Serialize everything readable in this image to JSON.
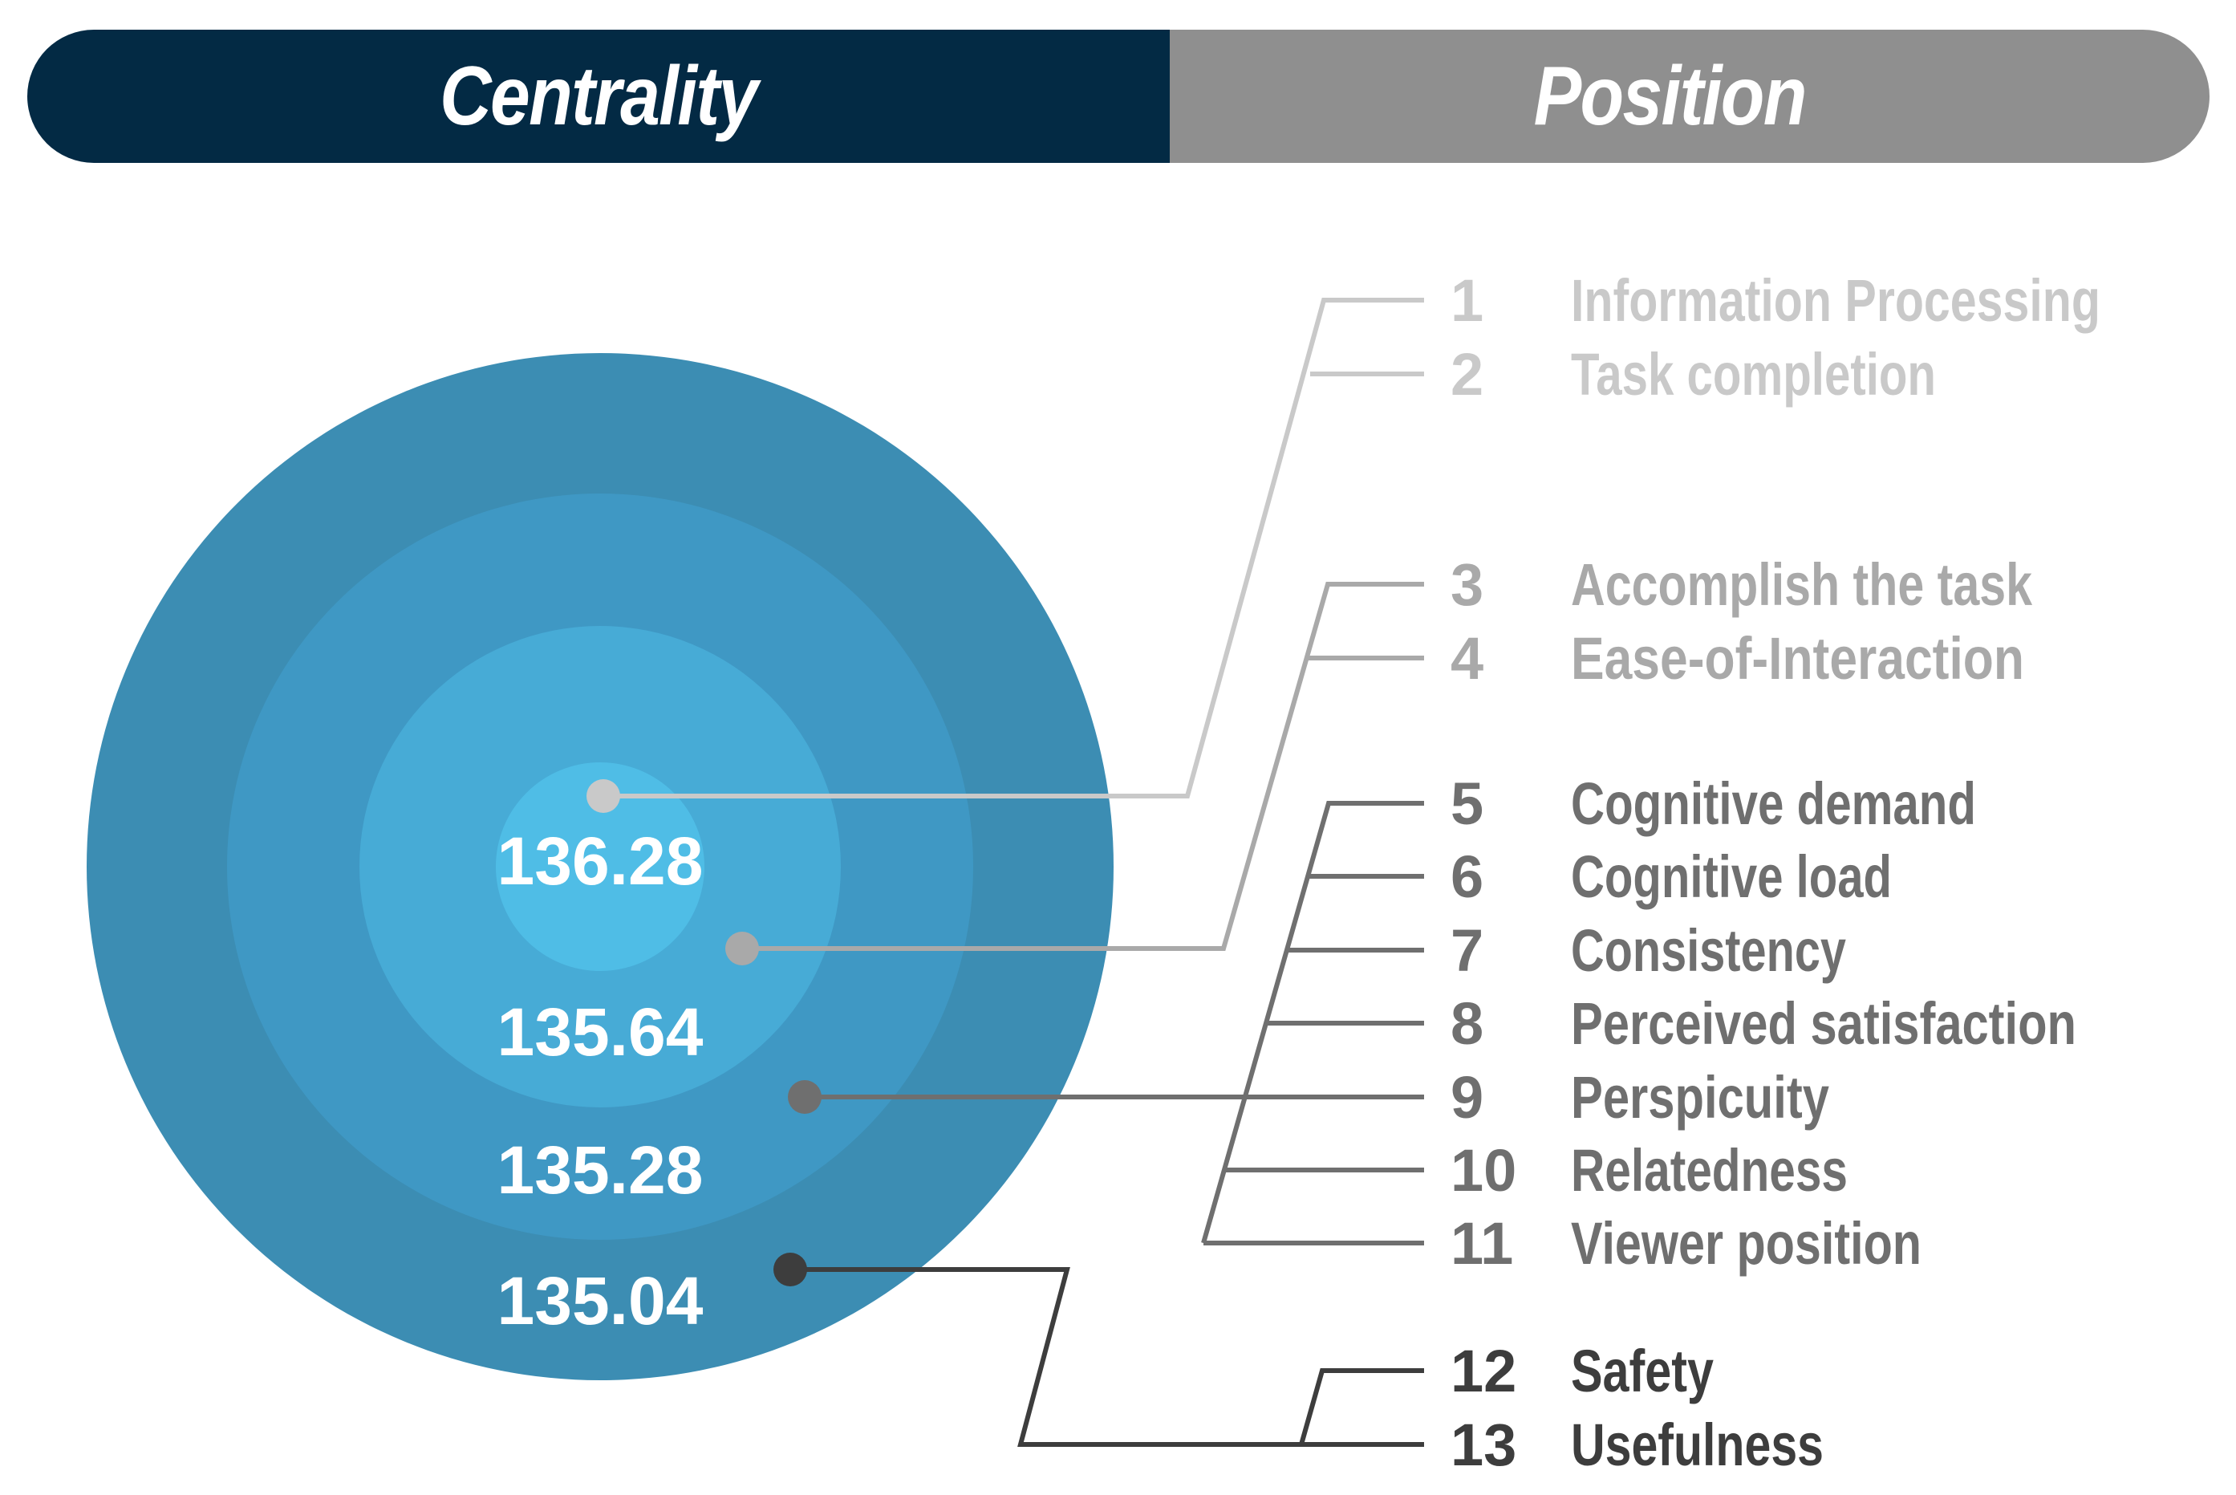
{
  "header": {
    "left_title": "Centrality",
    "right_title": "Position"
  },
  "colors": {
    "header_left": "#032a44",
    "header_right": "#8f8f8f",
    "ring_outer": "#3c8db3",
    "ring_2": "#3f98c4",
    "ring_3": "#47abd6",
    "ring_inner": "#4fbde6",
    "group_1": "#c9c9c9",
    "group_2": "#a9a9a9",
    "group_3": "#6f6f6f",
    "group_4": "#3d3d3d"
  },
  "rings": [
    {
      "value": "136.28"
    },
    {
      "value": "135.64"
    },
    {
      "value": "135.28"
    },
    {
      "value": "135.04"
    }
  ],
  "groups": [
    {
      "items": [
        {
          "num": "1",
          "label": "Information Processing"
        },
        {
          "num": "2",
          "label": "Task completion"
        }
      ]
    },
    {
      "items": [
        {
          "num": "3",
          "label": "Accomplish the task"
        },
        {
          "num": "4",
          "label": "Ease-of-Interaction"
        }
      ]
    },
    {
      "items": [
        {
          "num": "5",
          "label": "Cognitive demand"
        },
        {
          "num": "6",
          "label": "Cognitive load"
        },
        {
          "num": "7",
          "label": "Consistency"
        },
        {
          "num": "8",
          "label": "Perceived satisfaction"
        },
        {
          "num": "9",
          "label": "Perspicuity"
        },
        {
          "num": "10",
          "label": "Relatedness"
        },
        {
          "num": "11",
          "label": "Viewer position"
        }
      ]
    },
    {
      "items": [
        {
          "num": "12",
          "label": "Safety"
        },
        {
          "num": "13",
          "label": "Usefulness"
        }
      ]
    }
  ]
}
